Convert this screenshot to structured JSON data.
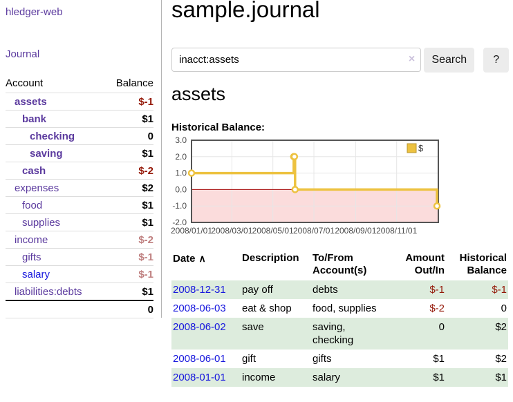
{
  "app": {
    "brand": "hledger-web",
    "nav_journal": "Journal"
  },
  "sidebar": {
    "header": {
      "account": "Account",
      "balance": "Balance"
    },
    "accounts": [
      {
        "name": "assets",
        "balance": "$-1",
        "indent": 1,
        "in_query": true
      },
      {
        "name": "bank",
        "balance": "$1",
        "indent": 2,
        "in_query": true
      },
      {
        "name": "checking",
        "balance": "0",
        "indent": 3,
        "in_query": true
      },
      {
        "name": "saving",
        "balance": "$1",
        "indent": 3,
        "in_query": true
      },
      {
        "name": "cash",
        "balance": "$-2",
        "indent": 2,
        "in_query": true
      },
      {
        "name": "expenses",
        "balance": "$2",
        "indent": 1,
        "in_query": false
      },
      {
        "name": "food",
        "balance": "$1",
        "indent": 2,
        "in_query": false
      },
      {
        "name": "supplies",
        "balance": "$1",
        "indent": 2,
        "in_query": false
      },
      {
        "name": "income",
        "balance": "$-2",
        "indent": 1,
        "in_query": false
      },
      {
        "name": "gifts",
        "balance": "$-1",
        "indent": 2,
        "in_query": false
      },
      {
        "name": "salary",
        "balance": "$-1",
        "indent": 2,
        "in_query": false,
        "link_color": "blue"
      },
      {
        "name": "liabilities:debts",
        "balance": "$1",
        "indent": 1,
        "in_query": false
      }
    ],
    "total": "0"
  },
  "header": {
    "title": "sample.journal"
  },
  "search": {
    "value": "inacct:assets",
    "clear_icon": "×",
    "button_label": "Search",
    "help_label": "?"
  },
  "register": {
    "heading": "assets",
    "chart_label": "Historical Balance:",
    "table": {
      "sort_icon": "∧",
      "headers": [
        {
          "line1": "Date",
          "line2": "",
          "align": "left",
          "sorted": true
        },
        {
          "line1": "Description",
          "line2": "",
          "align": "left"
        },
        {
          "line1": "To/From",
          "line2": "Account(s)",
          "align": "left"
        },
        {
          "line1": "Amount",
          "line2": "Out/In",
          "align": "right"
        },
        {
          "line1": "Historical",
          "line2": "Balance",
          "align": "right"
        }
      ],
      "rows": [
        {
          "date": "2008-12-31",
          "description": "pay off",
          "accounts": "debts",
          "amount": "$-1",
          "balance": "$-1"
        },
        {
          "date": "2008-06-03",
          "description": "eat & shop",
          "accounts": "food, supplies",
          "amount": "$-2",
          "balance": "0"
        },
        {
          "date": "2008-06-02",
          "description": "save",
          "accounts": "saving, checking",
          "amount": "0",
          "balance": "$2"
        },
        {
          "date": "2008-06-01",
          "description": "gift",
          "accounts": "gifts",
          "amount": "$1",
          "balance": "$2"
        },
        {
          "date": "2008-01-01",
          "description": "income",
          "accounts": "salary",
          "amount": "$1",
          "balance": "$1"
        }
      ]
    }
  },
  "chart_data": {
    "type": "line",
    "style": "step",
    "title": "Historical Balance",
    "legend": {
      "label": "$",
      "position": "top-right"
    },
    "series": [
      {
        "name": "$",
        "color": "#edc240",
        "points": [
          [
            0,
            1
          ],
          [
            152,
            2
          ],
          [
            153,
            2
          ],
          [
            154,
            0
          ],
          [
            365,
            -1
          ]
        ]
      }
    ],
    "x_unit": "days since 2008-01-01",
    "x_ticks": [
      {
        "pos": 0,
        "label": "2008/01/01"
      },
      {
        "pos": 60,
        "label": "2008/03/01"
      },
      {
        "pos": 121,
        "label": "2008/05/01"
      },
      {
        "pos": 182,
        "label": "2008/07/01"
      },
      {
        "pos": 244,
        "label": "2008/09/01"
      },
      {
        "pos": 305,
        "label": "2008/11/01"
      }
    ],
    "y_ticks": [
      {
        "value": 3,
        "label": "3.0"
      },
      {
        "value": 2,
        "label": "2.0"
      },
      {
        "value": 1,
        "label": "1.0"
      },
      {
        "value": 0,
        "label": "0.0"
      },
      {
        "value": -1,
        "label": "-1.0"
      },
      {
        "value": -2,
        "label": "-2.0"
      }
    ],
    "xlim": [
      0,
      367
    ],
    "ylim": [
      -2,
      3
    ],
    "grid": true,
    "colors": {
      "negative_region": "#fbdcdc",
      "zero_line": "#a80808",
      "grid": "#e6e6e6",
      "border": "#545454",
      "tick_text": "#4a4a4a"
    }
  }
}
